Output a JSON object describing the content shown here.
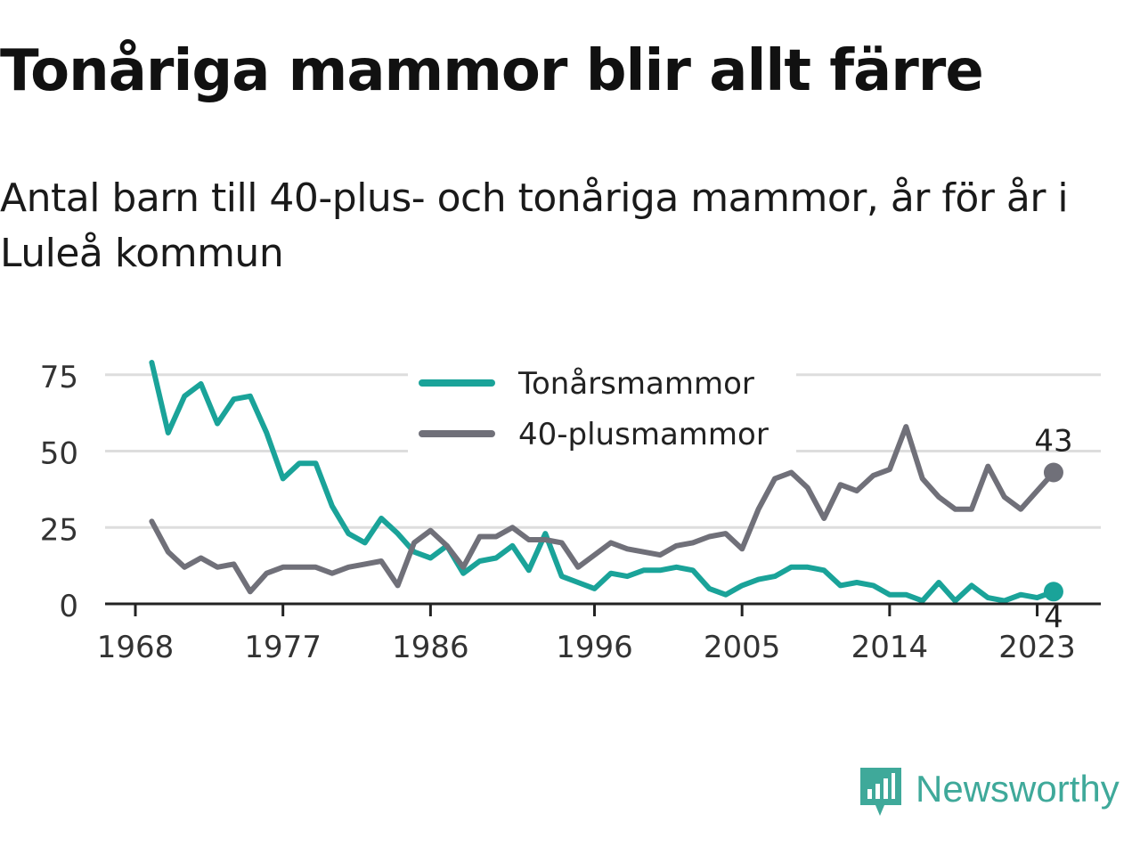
{
  "title": "Tonåriga mammor blir allt färre",
  "subtitle": "Antal barn till 40-plus- och tonåriga mammor, år för år i Luleå kommun",
  "brand": {
    "name": "Newsworthy",
    "icon": "newsworthy-logo-icon"
  },
  "colors": {
    "teal": "#1aa399",
    "gray": "#707079",
    "grid": "#dddddd",
    "axis": "#222222",
    "brand": "#3fa99a"
  },
  "chart_data": {
    "type": "line",
    "x": [
      1969,
      1970,
      1971,
      1972,
      1973,
      1974,
      1975,
      1976,
      1977,
      1978,
      1979,
      1980,
      1981,
      1982,
      1983,
      1984,
      1985,
      1986,
      1987,
      1988,
      1989,
      1990,
      1991,
      1992,
      1993,
      1994,
      1995,
      1996,
      1997,
      1998,
      1999,
      2000,
      2001,
      2002,
      2003,
      2004,
      2005,
      2006,
      2007,
      2008,
      2009,
      2010,
      2011,
      2012,
      2013,
      2014,
      2015,
      2016,
      2017,
      2018,
      2019,
      2020,
      2021,
      2022,
      2023,
      2024
    ],
    "series": [
      {
        "name": "Tonårsmammor",
        "color": "#1aa399",
        "values": [
          79,
          56,
          68,
          72,
          59,
          67,
          68,
          56,
          41,
          46,
          46,
          32,
          23,
          20,
          28,
          23,
          17,
          15,
          19,
          10,
          14,
          15,
          19,
          11,
          23,
          9,
          7,
          5,
          10,
          9,
          11,
          11,
          12,
          11,
          5,
          3,
          6,
          8,
          9,
          12,
          12,
          11,
          6,
          7,
          6,
          3,
          3,
          1,
          7,
          1,
          6,
          2,
          1,
          3,
          2,
          4
        ],
        "end_label": "4"
      },
      {
        "name": "40-plusmammor",
        "color": "#707079",
        "values": [
          27,
          17,
          12,
          15,
          12,
          13,
          4,
          10,
          12,
          12,
          12,
          10,
          12,
          13,
          14,
          6,
          20,
          24,
          19,
          12,
          22,
          22,
          25,
          21,
          21,
          20,
          12,
          16,
          20,
          18,
          17,
          16,
          19,
          20,
          22,
          23,
          18,
          31,
          41,
          43,
          38,
          28,
          39,
          37,
          42,
          44,
          58,
          41,
          35,
          31,
          31,
          45,
          35,
          31,
          37,
          43
        ],
        "end_label": "43"
      }
    ],
    "xticks": [
      "1968",
      "1977",
      "1986",
      "1996",
      "2005",
      "2014",
      "2023"
    ],
    "yticks": [
      "0",
      "25",
      "50",
      "75"
    ],
    "ylim": [
      0,
      80
    ],
    "xlim": [
      1968,
      2025.5
    ],
    "grid": true,
    "legend": "top-center",
    "xlabel": "",
    "ylabel": ""
  }
}
